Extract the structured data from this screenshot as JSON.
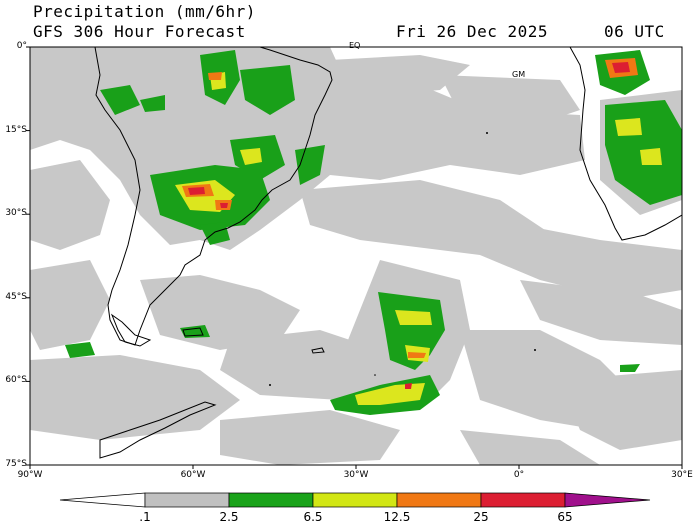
{
  "header": {
    "title_line1": "Precipitation (mm/6hr)",
    "title_line2": "GFS 306 Hour Forecast",
    "valid_date": "Fri 26 Dec 2025",
    "valid_hour": "06 UTC"
  },
  "map": {
    "lat_labels": [
      "0°",
      "15°S",
      "30°S",
      "45°S",
      "60°S",
      "75°S"
    ],
    "lat_values": [
      0,
      -15,
      -30,
      -45,
      -60,
      -75
    ],
    "lon_labels": [
      "90°W",
      "60°W",
      "30°W",
      "0°",
      "30°E"
    ],
    "lon_values": [
      -90,
      -60,
      -30,
      0,
      30
    ],
    "extent": {
      "lon_min": -90,
      "lon_max": 30,
      "lat_min": -75,
      "lat_max": 0
    },
    "markers": [
      "EQ",
      "GM"
    ]
  },
  "colorbar": {
    "labels": [
      ".1",
      "2.5",
      "6.5",
      "12.5",
      "25",
      "65"
    ],
    "colors": [
      "#ffffff",
      "#c0c0c0",
      "#1aa31a",
      "#d2e614",
      "#f07814",
      "#dc1e32",
      "#a0108c"
    ]
  },
  "colors": {
    "light_precip": "#c8c8c8",
    "moderate": "#19a019",
    "heavy": "#dce61e",
    "very_heavy": "#f07814",
    "extreme": "#dc1e32",
    "coast": "#000000"
  }
}
